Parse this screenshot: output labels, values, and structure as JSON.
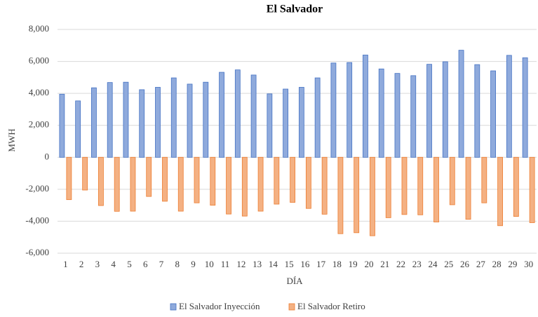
{
  "chart_data": {
    "type": "bar",
    "title": "El Salvador",
    "x_label": "DÍA",
    "y_label": "MWH",
    "categories": [
      "1",
      "2",
      "3",
      "4",
      "5",
      "6",
      "7",
      "8",
      "9",
      "10",
      "11",
      "12",
      "13",
      "14",
      "15",
      "16",
      "17",
      "18",
      "19",
      "20",
      "21",
      "22",
      "23",
      "24",
      "25",
      "26",
      "27",
      "28",
      "29",
      "30"
    ],
    "series": [
      {
        "name": "El Salvador Inyección",
        "color": "#8faadc",
        "values": [
          3950,
          3530,
          4350,
          4680,
          4700,
          4230,
          4380,
          4970,
          4580,
          4700,
          5320,
          5470,
          5150,
          3970,
          4270,
          4380,
          4970,
          5900,
          5930,
          6400,
          5530,
          5250,
          5110,
          5820,
          5980,
          6700,
          5800,
          5410,
          6380,
          6230
        ]
      },
      {
        "name": "El Salvador Retiro",
        "color": "#f4b183",
        "values": [
          -2650,
          -2050,
          -3020,
          -3380,
          -3370,
          -2450,
          -2750,
          -3370,
          -2850,
          -3000,
          -3550,
          -3680,
          -3370,
          -2930,
          -2820,
          -3200,
          -3560,
          -4780,
          -4720,
          -4910,
          -3780,
          -3580,
          -3600,
          -4050,
          -2970,
          -3880,
          -2850,
          -4280,
          -3700,
          -4090
        ]
      }
    ],
    "ylim": [
      -6000,
      8000
    ],
    "yticks": [
      {
        "value": -6000,
        "label": "-6,000"
      },
      {
        "value": -4000,
        "label": "-4,000"
      },
      {
        "value": -2000,
        "label": "-2,000"
      },
      0,
      {
        "value": 2000,
        "label": "2,000"
      },
      {
        "value": 4000,
        "label": "4,000"
      },
      {
        "value": 6000,
        "label": "6,000"
      },
      {
        "value": 8000,
        "label": "8,000"
      }
    ],
    "grid": true,
    "legend": "bottom"
  }
}
